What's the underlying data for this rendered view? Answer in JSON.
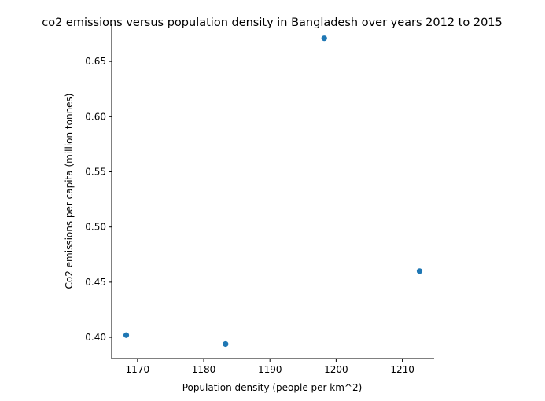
{
  "chart_data": {
    "type": "scatter",
    "title": "co2 emissions versus population density in Bangladesh over years 2012 to 2015",
    "xlabel": "Population density (people per km^2)",
    "ylabel": "Co2 emissions per capita (million tonnes)",
    "xlim": [
      1166.1,
      1214.8
    ],
    "ylim": [
      0.3808,
      0.6843
    ],
    "xticks": [
      1170,
      1180,
      1190,
      1200,
      1210
    ],
    "yticks": [
      0.4,
      0.45,
      0.5,
      0.55,
      0.6,
      0.65
    ],
    "grid": false,
    "point_color": "#1f77b4",
    "series": [
      {
        "points": [
          {
            "x": 1168.3,
            "y": 0.402
          },
          {
            "x": 1183.3,
            "y": 0.394
          },
          {
            "x": 1198.2,
            "y": 0.671
          },
          {
            "x": 1212.6,
            "y": 0.46
          }
        ]
      }
    ]
  }
}
